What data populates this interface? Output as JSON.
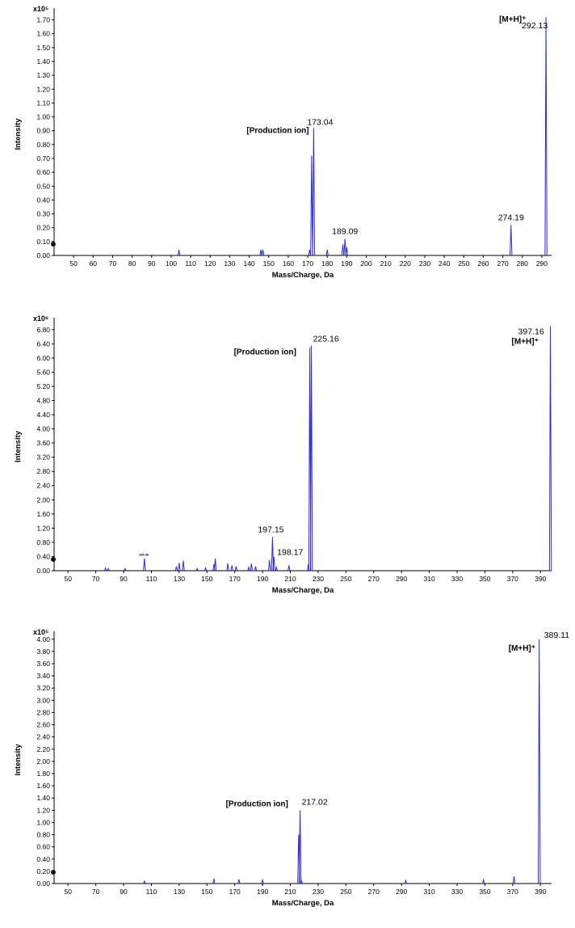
{
  "chart_data": [
    {
      "type": "line",
      "multiplier": "x10⁵",
      "xlabel": "Mass/Charge, Da",
      "ylabel": "Intensity",
      "xlim": [
        40,
        295
      ],
      "ylim": [
        0,
        1.75
      ],
      "x_ticks": [
        50,
        60,
        70,
        80,
        90,
        100,
        110,
        120,
        130,
        140,
        150,
        160,
        170,
        180,
        190,
        200,
        210,
        220,
        230,
        240,
        250,
        260,
        270,
        280,
        290
      ],
      "y_ticks": [
        0.0,
        0.1,
        0.2,
        0.3,
        0.4,
        0.5,
        0.6,
        0.7,
        0.8,
        0.9,
        1.0,
        1.1,
        1.2,
        1.3,
        1.4,
        1.5,
        1.6,
        1.7
      ],
      "y_tick_labels": [
        "0.00",
        "0.10",
        "0.20",
        "0.30",
        "0.40",
        "0.50",
        "0.60",
        "0.70",
        "0.80",
        "0.90",
        "1.00",
        "1.10",
        "1.20",
        "1.30",
        "1.40",
        "1.50",
        "1.60",
        "1.70"
      ],
      "peaks": [
        [
          104,
          0.04
        ],
        [
          146,
          0.04
        ],
        [
          147,
          0.04
        ],
        [
          171,
          0.04
        ],
        [
          172,
          0.72
        ],
        [
          173.04,
          0.92
        ],
        [
          180,
          0.04
        ],
        [
          188,
          0.08
        ],
        [
          189.09,
          0.12
        ],
        [
          190,
          0.06
        ],
        [
          274.19,
          0.22
        ],
        [
          292.13,
          1.72
        ]
      ],
      "peak_labels": [
        {
          "x": 173.04,
          "y": 0.92,
          "text": "173.04"
        },
        {
          "x": 189.09,
          "y": 0.12,
          "text": "189.09"
        },
        {
          "x": 274.19,
          "y": 0.22,
          "text": "274.19"
        },
        {
          "x": 292.13,
          "y": 1.72,
          "text": "292.13"
        }
      ],
      "annotations": [
        {
          "x": 173.04,
          "y": 0.92,
          "text": "[Production ion]"
        },
        {
          "x": 292.13,
          "y": 1.72,
          "text": "[M+H]⁺"
        }
      ]
    },
    {
      "type": "line",
      "multiplier": "x10⁶",
      "xlabel": "Mass/Charge, Da",
      "ylabel": "Intensity",
      "xlim": [
        40,
        398
      ],
      "ylim": [
        0,
        7.0
      ],
      "x_ticks": [
        50,
        70,
        90,
        110,
        130,
        150,
        170,
        190,
        210,
        230,
        250,
        270,
        290,
        310,
        330,
        350,
        370,
        390
      ],
      "y_ticks": [
        0.0,
        0.4,
        0.8,
        1.2,
        1.6,
        2.0,
        2.4,
        2.8,
        3.2,
        3.6,
        4.0,
        4.4,
        4.8,
        5.2,
        5.6,
        6.0,
        6.4,
        6.8
      ],
      "y_tick_labels": [
        "0.00",
        "0.40",
        "0.80",
        "1.20",
        "1.60",
        "2.00",
        "2.40",
        "2.80",
        "3.20",
        "3.60",
        "4.00",
        "4.40",
        "4.80",
        "5.20",
        "5.60",
        "6.00",
        "6.40",
        "6.80"
      ],
      "peaks": [
        [
          77,
          0.08
        ],
        [
          79,
          0.06
        ],
        [
          91,
          0.06
        ],
        [
          105,
          0.35
        ],
        [
          128,
          0.12
        ],
        [
          130,
          0.22
        ],
        [
          133,
          0.28
        ],
        [
          143,
          0.06
        ],
        [
          149,
          0.08
        ],
        [
          155,
          0.18
        ],
        [
          156,
          0.34
        ],
        [
          165,
          0.2
        ],
        [
          168,
          0.15
        ],
        [
          171,
          0.12
        ],
        [
          180,
          0.1
        ],
        [
          182,
          0.2
        ],
        [
          185,
          0.12
        ],
        [
          195,
          0.3
        ],
        [
          197.15,
          0.95
        ],
        [
          198.17,
          0.4
        ],
        [
          200,
          0.1
        ],
        [
          209,
          0.15
        ],
        [
          223,
          0.18
        ],
        [
          224,
          6.3
        ],
        [
          225.16,
          6.35
        ],
        [
          397.16,
          6.9
        ]
      ],
      "peak_labels": [
        {
          "x": 105,
          "y": 0.35,
          "text": "105.06"
        },
        {
          "x": 197.15,
          "y": 0.95,
          "text": "197.15"
        },
        {
          "x": 198.17,
          "y": 0.4,
          "text": "198.17"
        },
        {
          "x": 225.16,
          "y": 6.35,
          "text": "225.16"
        },
        {
          "x": 397.16,
          "y": 6.9,
          "text": "397.16"
        }
      ],
      "annotations": [
        {
          "x": 225.16,
          "y": 6.35,
          "text": "[Production ion]"
        },
        {
          "x": 397.16,
          "y": 6.9,
          "text": "[M+H]⁺"
        }
      ]
    },
    {
      "type": "line",
      "multiplier": "x10⁵",
      "xlabel": "Mass/Charge, Da",
      "ylabel": "Intensity",
      "xlim": [
        40,
        398
      ],
      "ylim": [
        0,
        4.05
      ],
      "x_ticks": [
        50,
        70,
        90,
        110,
        130,
        150,
        170,
        190,
        210,
        230,
        250,
        270,
        290,
        310,
        330,
        350,
        370,
        390
      ],
      "y_ticks": [
        0.0,
        0.2,
        0.4,
        0.6,
        0.8,
        1.0,
        1.2,
        1.4,
        1.6,
        1.8,
        2.0,
        2.2,
        2.4,
        2.6,
        2.8,
        3.0,
        3.2,
        3.4,
        3.6,
        3.8,
        4.0
      ],
      "y_tick_labels": [
        "0.00",
        "0.20",
        "0.40",
        "0.60",
        "0.80",
        "1.00",
        "1.20",
        "1.40",
        "1.60",
        "1.80",
        "2.00",
        "2.20",
        "2.40",
        "2.60",
        "2.80",
        "3.00",
        "3.20",
        "3.40",
        "3.60",
        "3.80",
        "4.00"
      ],
      "peaks": [
        [
          105,
          0.04
        ],
        [
          155,
          0.08
        ],
        [
          173,
          0.07
        ],
        [
          190,
          0.06
        ],
        [
          216,
          0.8
        ],
        [
          217.02,
          1.2
        ],
        [
          218,
          0.05
        ],
        [
          293,
          0.05
        ],
        [
          349,
          0.06
        ],
        [
          371,
          0.12
        ],
        [
          389.11,
          4.0
        ]
      ],
      "peak_labels": [
        {
          "x": 217.02,
          "y": 1.2,
          "text": "217.02"
        },
        {
          "x": 389.11,
          "y": 4.0,
          "text": "389.11"
        }
      ],
      "annotations": [
        {
          "x": 217.02,
          "y": 1.2,
          "text": "[Production ion]"
        },
        {
          "x": 389.11,
          "y": 4.0,
          "text": "[M+H]⁺"
        }
      ]
    }
  ]
}
